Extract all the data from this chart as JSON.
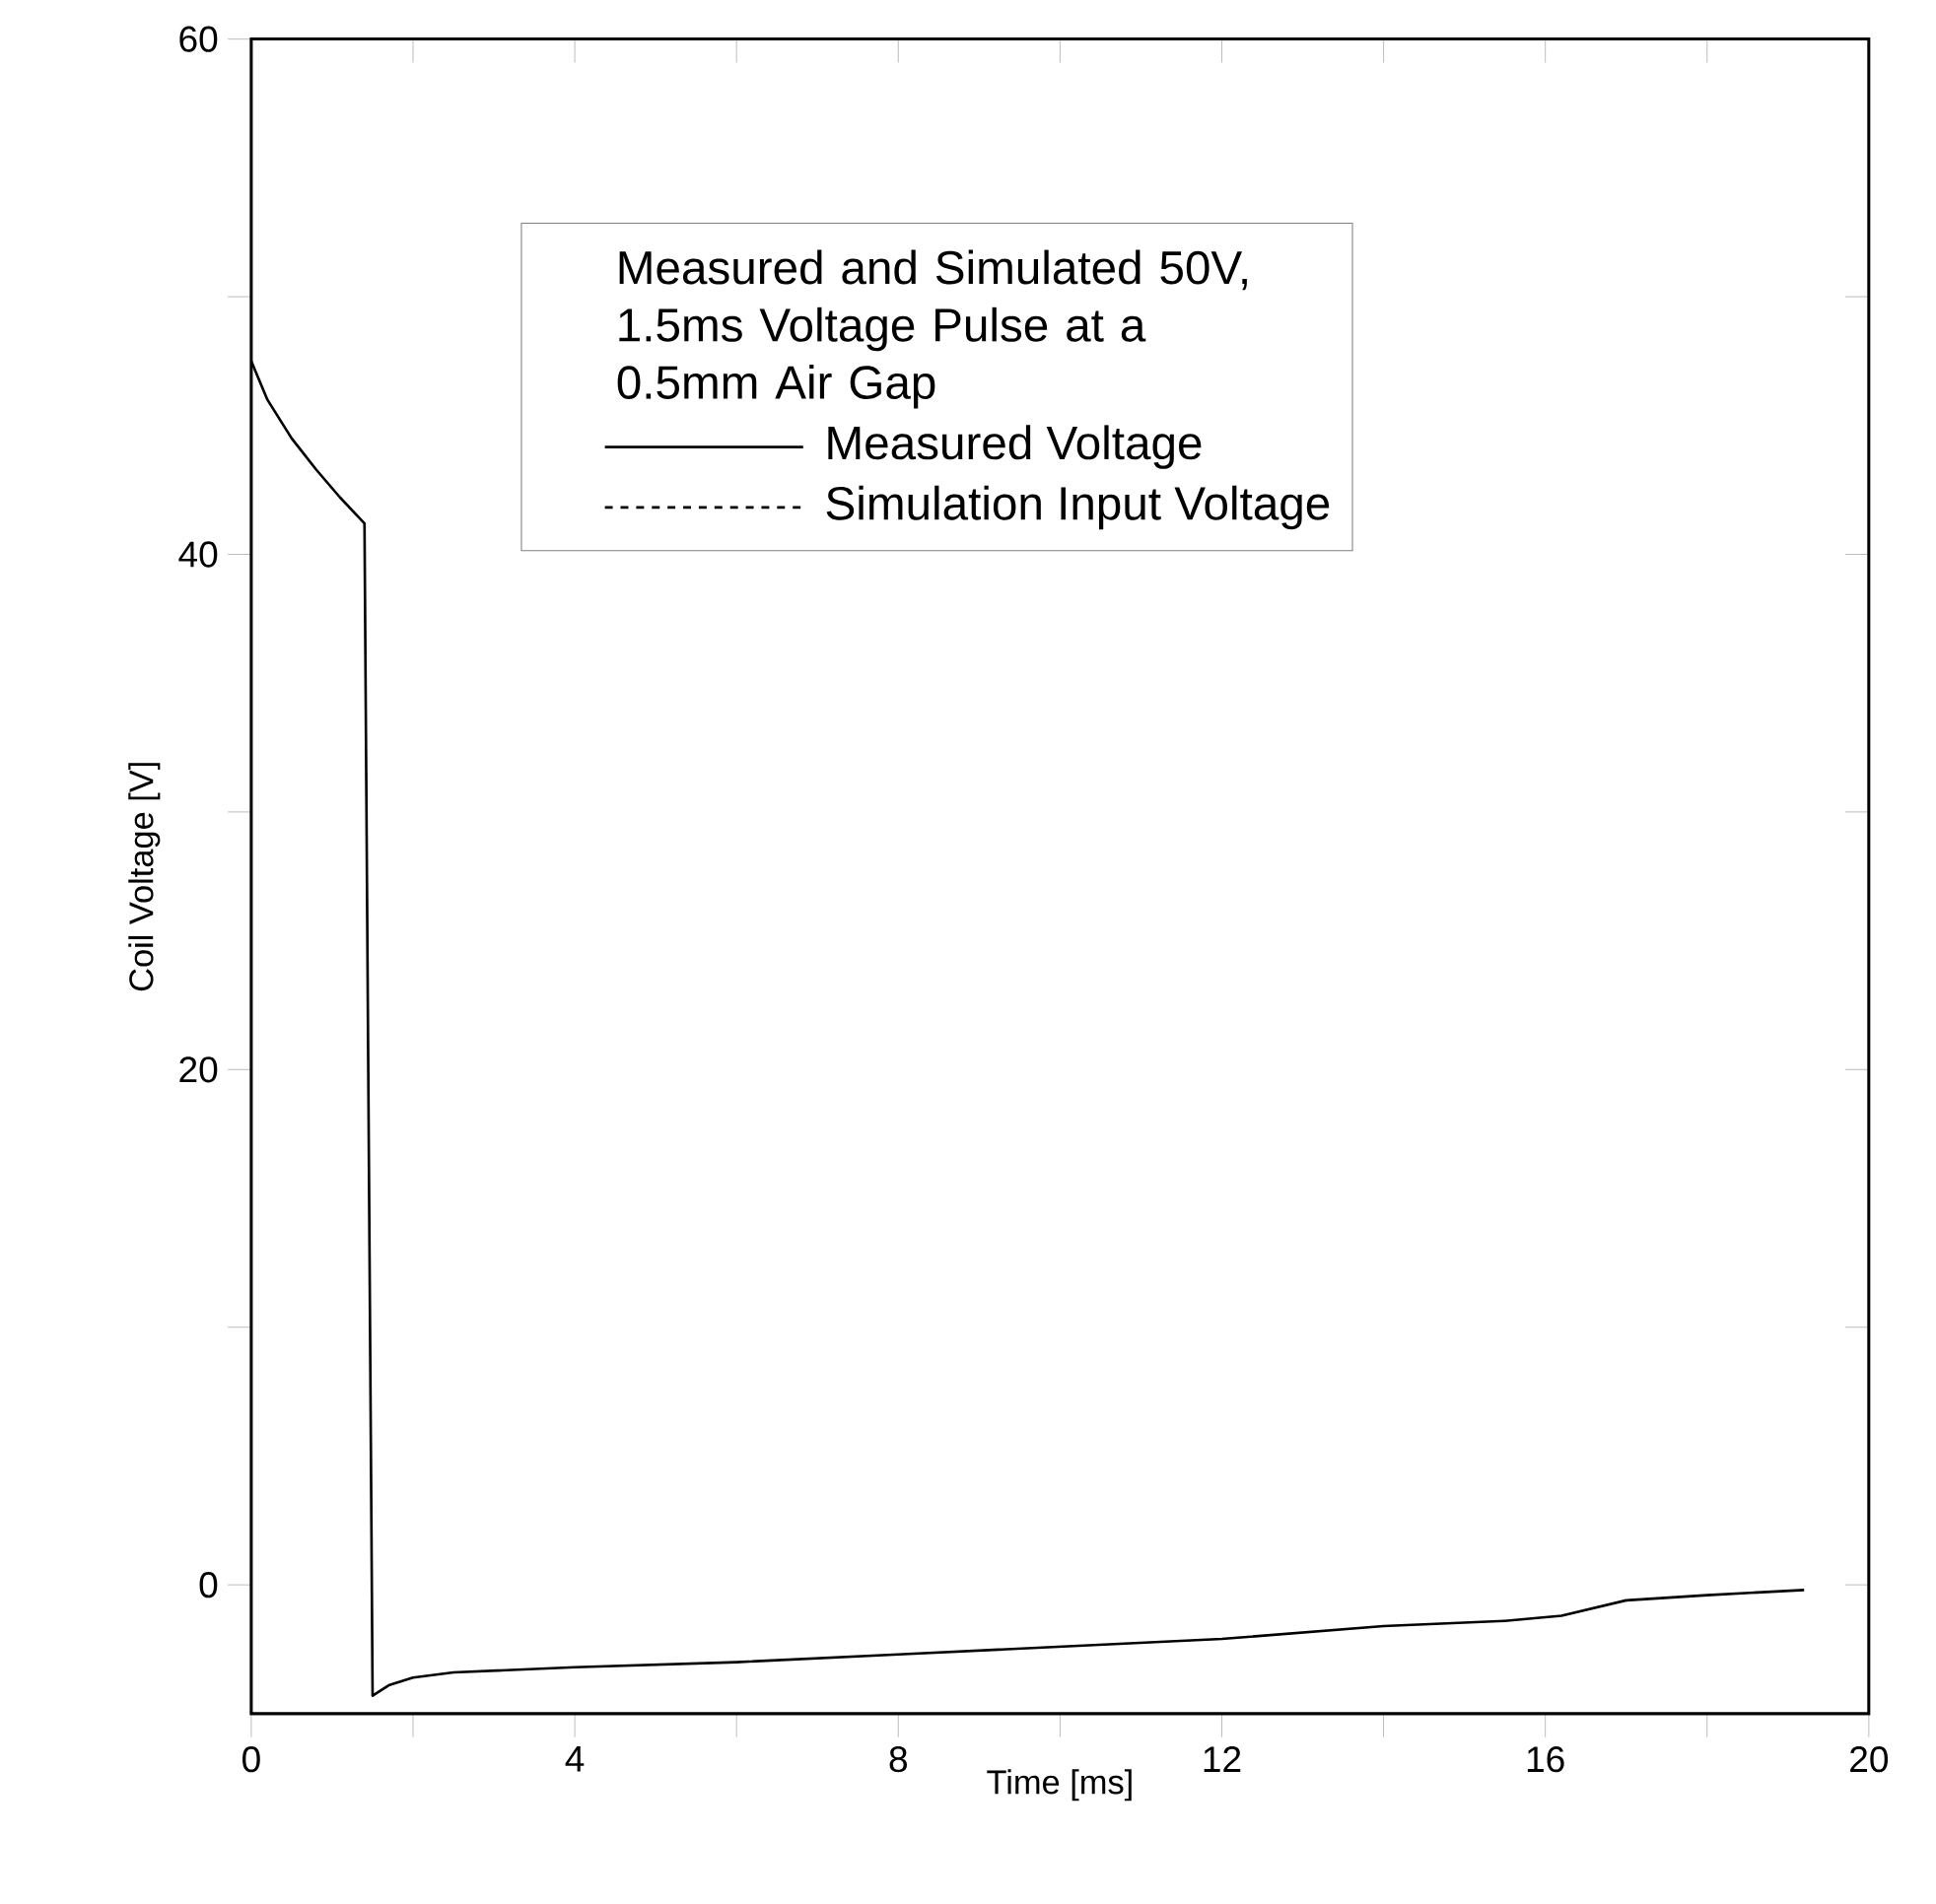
{
  "chart_data": {
    "type": "line",
    "xlabel": "Time [ms]",
    "ylabel": "Coil Voltage [V]",
    "legend_title": "Measured and Simulated 50V, 1.5ms  Voltage Pulse at a 0.5mm Air Gap",
    "legend": "top",
    "grid": false,
    "xlim": [
      0,
      20
    ],
    "ylim": [
      -5,
      60
    ],
    "xticks": [
      0,
      {
        "value": 2,
        "label": null
      },
      4,
      {
        "value": 6,
        "label": null
      },
      8,
      {
        "value": 10,
        "label": null
      },
      12,
      {
        "value": 14,
        "label": null
      },
      16,
      {
        "value": 18,
        "label": null
      },
      20
    ],
    "yticks": [
      0,
      {
        "value": 10,
        "label": null
      },
      20,
      {
        "value": 30,
        "label": null
      },
      40,
      {
        "value": 50,
        "label": null
      },
      60
    ],
    "series": [
      {
        "name": "Measured Voltage",
        "color": "#000000",
        "line_style": "solid",
        "x": [
          0,
          0.2,
          0.5,
          0.8,
          1.1,
          1.4,
          1.5,
          1.7,
          2.0,
          2.5,
          4,
          6,
          8,
          10,
          12,
          14,
          15.5,
          16.2,
          17,
          18,
          19.2
        ],
        "values": [
          47.5,
          46,
          44.5,
          43.3,
          42.2,
          41.2,
          -4.3,
          -3.9,
          -3.6,
          -3.4,
          -3.2,
          -3,
          -2.7,
          -2.4,
          -2.1,
          -1.6,
          -1.4,
          -1.2,
          -0.6,
          -0.4,
          -0.2
        ]
      },
      {
        "name": "Simulation Input Voltage",
        "color": "#000000",
        "line_style": "dashed"
      }
    ]
  }
}
